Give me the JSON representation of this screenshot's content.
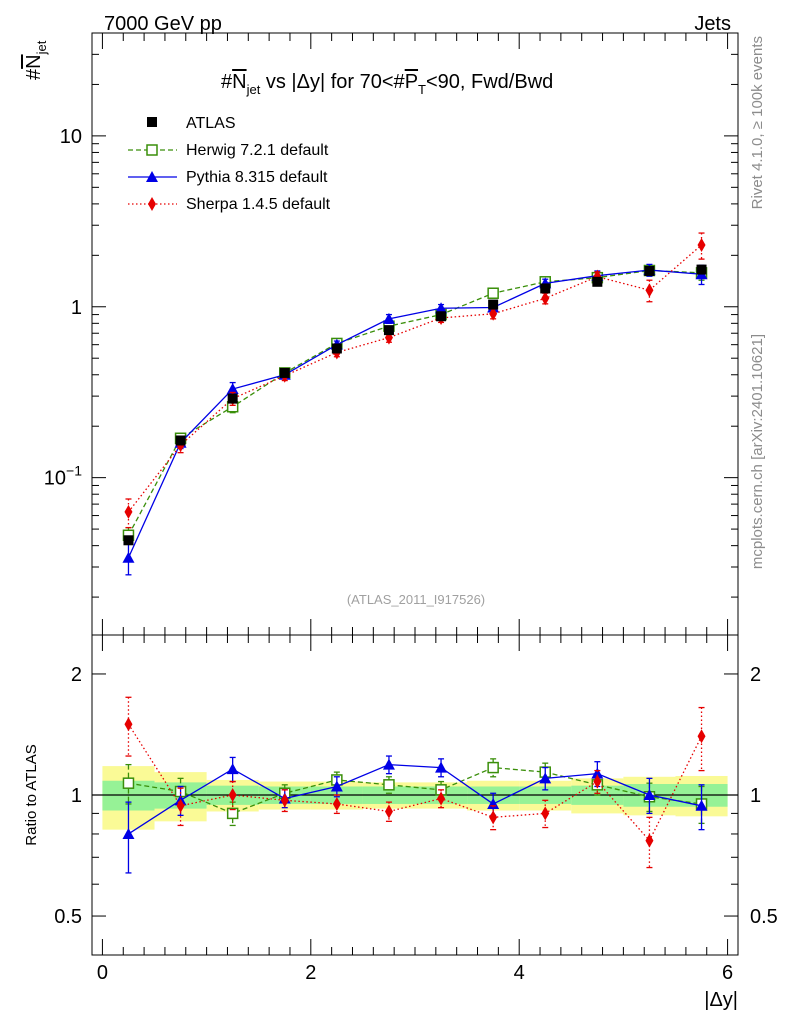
{
  "header": {
    "left": "7000 GeV pp",
    "right": "Jets"
  },
  "side_labels": {
    "rivet": "Rivet 4.1.0, ≥ 100k events",
    "mcplots": "mcplots.cern.ch [arXiv:2401.10621]"
  },
  "colors": {
    "atlas": "#000000",
    "herwig": "#3a8f0a",
    "pythia": "#0000e6",
    "sherpa": "#e60000",
    "band_inner": "#96f296",
    "band_outer": "#fafa96"
  },
  "chart_data": [
    {
      "type": "scatter",
      "title_parts": {
        "a": "#",
        "b": "N",
        "c": "jet",
        "d": " vs |Δy| for 70<#",
        "e": "P",
        "f": "T",
        "g": "<90, Fwd/Bwd"
      },
      "ylabel_parts": {
        "a": "#",
        "b": "N",
        "c": "jet"
      },
      "yscale": "log",
      "ylim": [
        0.012,
        40
      ],
      "xlim": [
        -0.1,
        6.1
      ],
      "yticks": [
        {
          "v": 10,
          "label": "10"
        },
        {
          "v": 1,
          "label": "1"
        },
        {
          "v": 0.1,
          "base": "10",
          "exp": "−1"
        }
      ],
      "watermark": "(ATLAS_2011_I917526)",
      "legend_position": "top-left",
      "x": [
        0.25,
        0.75,
        1.25,
        1.75,
        2.25,
        2.75,
        3.25,
        3.75,
        4.25,
        4.75,
        5.25,
        5.75
      ],
      "series": [
        {
          "name": "ATLAS",
          "key": "atlas",
          "values": [
            0.043,
            0.165,
            0.29,
            0.41,
            0.57,
            0.73,
            0.88,
            1.03,
            1.28,
            1.4,
            1.62,
            1.65
          ]
        },
        {
          "name": "Herwig 7.2.1 default",
          "key": "herwig",
          "values": [
            0.046,
            0.17,
            0.26,
            0.41,
            0.61,
            0.77,
            0.9,
            1.2,
            1.4,
            1.48,
            1.63,
            1.58
          ],
          "errors": [
            0.005,
            0.012,
            0.02,
            0.02,
            0.03,
            0.04,
            0.05,
            0.06,
            0.07,
            0.08,
            0.12,
            0.15
          ]
        },
        {
          "name": "Pythia 8.315 default",
          "key": "pythia",
          "values": [
            0.034,
            0.16,
            0.33,
            0.4,
            0.6,
            0.85,
            0.98,
            0.99,
            1.37,
            1.52,
            1.64,
            1.55
          ],
          "errors": [
            0.007,
            0.012,
            0.03,
            0.02,
            0.03,
            0.05,
            0.05,
            0.06,
            0.08,
            0.1,
            0.13,
            0.2
          ]
        },
        {
          "name": "Sherpa 1.4.5 default",
          "key": "sherpa",
          "values": [
            0.063,
            0.155,
            0.29,
            0.395,
            0.54,
            0.66,
            0.86,
            0.91,
            1.12,
            1.5,
            1.25,
            2.3
          ],
          "errors": [
            0.012,
            0.015,
            0.025,
            0.025,
            0.03,
            0.04,
            0.05,
            0.06,
            0.08,
            0.1,
            0.18,
            0.4
          ]
        }
      ]
    },
    {
      "type": "scatter",
      "ylabel": "Ratio to ATLAS",
      "yscale": "log",
      "ylim": [
        0.4,
        2.5
      ],
      "xlim": [
        -0.1,
        6.1
      ],
      "xlabel": "|Δy|",
      "yticks": [
        {
          "v": 2,
          "label": "2"
        },
        {
          "v": 1,
          "label": "1"
        },
        {
          "v": 0.5,
          "label": "0.5"
        }
      ],
      "xticks": [
        {
          "v": 0,
          "label": "0"
        },
        {
          "v": 2,
          "label": "2"
        },
        {
          "v": 4,
          "label": "4"
        },
        {
          "v": 6,
          "label": "6"
        }
      ],
      "x": [
        0.25,
        0.75,
        1.25,
        1.75,
        2.25,
        2.75,
        3.25,
        3.75,
        4.25,
        4.75,
        5.25,
        5.75
      ],
      "band_inner": [
        0.085,
        0.075,
        0.055,
        0.05,
        0.05,
        0.05,
        0.05,
        0.05,
        0.05,
        0.055,
        0.065,
        0.065
      ],
      "band_outer": [
        0.18,
        0.14,
        0.09,
        0.08,
        0.08,
        0.075,
        0.075,
        0.085,
        0.085,
        0.1,
        0.11,
        0.115
      ],
      "series": [
        {
          "name": "Herwig 7.2.1 default",
          "key": "herwig",
          "values": [
            1.07,
            1.02,
            0.9,
            1.01,
            1.09,
            1.06,
            1.03,
            1.17,
            1.14,
            1.06,
            0.99,
            0.95
          ],
          "errors": [
            0.12,
            0.08,
            0.06,
            0.05,
            0.05,
            0.05,
            0.05,
            0.06,
            0.06,
            0.06,
            0.08,
            0.1
          ]
        },
        {
          "name": "Pythia 8.315 default",
          "key": "pythia",
          "values": [
            0.8,
            0.97,
            1.16,
            0.98,
            1.05,
            1.19,
            1.17,
            0.95,
            1.1,
            1.13,
            1.0,
            0.94
          ],
          "errors": [
            0.16,
            0.08,
            0.08,
            0.05,
            0.06,
            0.06,
            0.06,
            0.06,
            0.07,
            0.08,
            0.1,
            0.12
          ]
        },
        {
          "name": "Sherpa 1.4.5 default",
          "key": "sherpa",
          "values": [
            1.5,
            0.94,
            1.0,
            0.97,
            0.95,
            0.91,
            0.98,
            0.88,
            0.9,
            1.08,
            0.77,
            1.4
          ],
          "errors": [
            0.25,
            0.1,
            0.08,
            0.06,
            0.05,
            0.05,
            0.05,
            0.06,
            0.07,
            0.07,
            0.11,
            0.25
          ]
        }
      ]
    }
  ]
}
